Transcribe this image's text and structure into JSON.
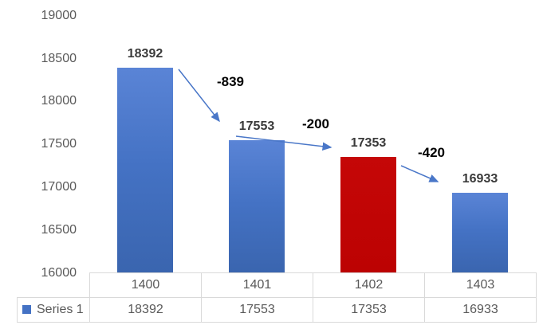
{
  "chart_data": {
    "type": "bar",
    "title": "",
    "xlabel": "",
    "ylabel": "",
    "categories": [
      "1400",
      "1401",
      "1402",
      "1403"
    ],
    "series": [
      {
        "name": "Series 1",
        "values": [
          18392,
          17553,
          17353,
          16933
        ]
      }
    ],
    "bar_colors": [
      "#4472C4",
      "#4472C4",
      "#C00000",
      "#4472C4"
    ],
    "highlight_index": 2,
    "ylim": [
      16000,
      19000
    ],
    "ytick_step": 500,
    "yticks": [
      "19000",
      "18500",
      "18000",
      "17500",
      "17000",
      "16500",
      "16000"
    ],
    "gridlines": false,
    "legend_position": "data-table-left",
    "data_table_shown": true,
    "value_labels": [
      18392,
      17553,
      17353,
      16933
    ],
    "annotations": [
      {
        "label": "-839",
        "from": "1400",
        "to": "1401"
      },
      {
        "label": "-200",
        "from": "1401",
        "to": "1402"
      },
      {
        "label": "-420",
        "from": "1402",
        "to": "1403"
      }
    ]
  },
  "legend": {
    "series_label": "Series 1",
    "swatch_color": "#4472C4"
  },
  "colors": {
    "bar_blue": "#4472C4",
    "bar_red": "#C00000",
    "arrow_blue": "#4a77c8",
    "axis_text": "#595959",
    "value_label_text": "#3A3A3A",
    "diff_label_text": "#000000",
    "table_border": "#D9D9D9"
  }
}
